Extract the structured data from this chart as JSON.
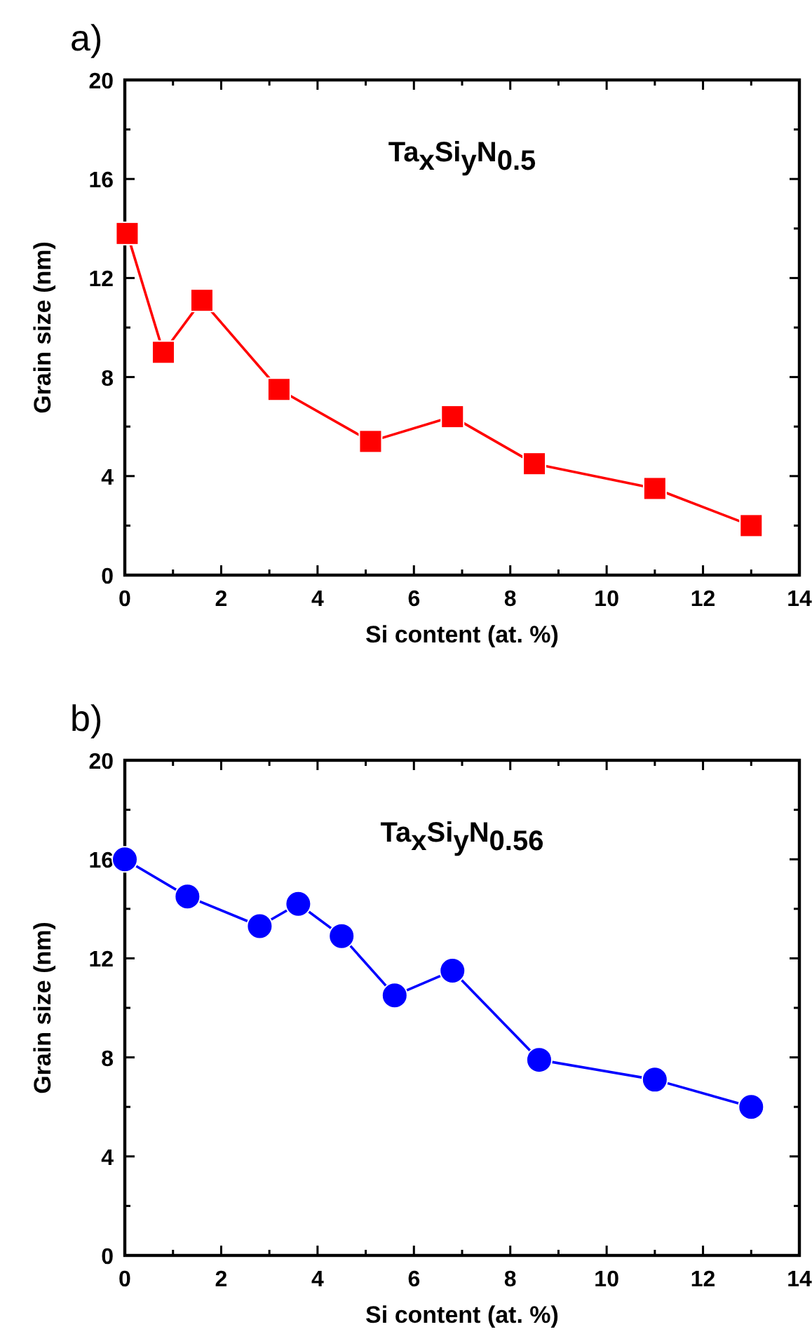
{
  "chart_data": [
    {
      "type": "line",
      "title": "a)",
      "xlabel": "Si content (at. %)",
      "ylabel": "Grain size (nm)",
      "annotations": [
        "Ta$_{x}$Si$_{y}$N$_{0.5}$"
      ],
      "x": [
        0.05,
        0.8,
        1.6,
        3.2,
        5.1,
        6.8,
        8.5,
        11,
        13
      ],
      "series": [
        {
          "color": "#ff0000",
          "values": [
            13.8,
            9.0,
            11.1,
            7.5,
            5.4,
            6.4,
            4.5,
            3.5,
            2.0
          ]
        }
      ],
      "marker": "square",
      "xlim": [
        0,
        14
      ],
      "ylim": [
        0,
        20
      ],
      "xticks": [
        0,
        {
          "value": 1,
          "label": null
        },
        2,
        {
          "value": 3,
          "label": null
        },
        4,
        {
          "value": 5,
          "label": null
        },
        6,
        {
          "value": 7,
          "label": null
        },
        8,
        {
          "value": 9,
          "label": null
        },
        10,
        {
          "value": 11,
          "label": null
        },
        12,
        {
          "value": 13,
          "label": null
        },
        14
      ],
      "yticks": [
        0,
        {
          "value": 2,
          "label": null
        },
        4,
        {
          "value": 6,
          "label": null
        },
        8,
        {
          "value": 10,
          "label": null
        },
        12,
        {
          "value": 14,
          "label": null
        },
        16,
        {
          "value": 18,
          "label": null
        },
        20
      ],
      "grid": false
    },
    {
      "type": "line",
      "title": "b)",
      "xlabel": "Si content (at. %)",
      "ylabel": "Grain size (nm)",
      "annotations": [
        "Ta$_{x}$Si$_{y}$N$_{0.56}$"
      ],
      "x": [
        0,
        1.3,
        2.8,
        3.6,
        4.5,
        5.6,
        6.8,
        8.6,
        11,
        13
      ],
      "series": [
        {
          "color": "#0000ff",
          "values": [
            16.0,
            14.5,
            13.3,
            14.2,
            12.9,
            10.5,
            11.5,
            7.9,
            7.1,
            6.0
          ]
        }
      ],
      "marker": "circle",
      "xlim": [
        0,
        14
      ],
      "ylim": [
        0,
        20
      ],
      "xticks": [
        0,
        {
          "value": 1,
          "label": null
        },
        2,
        {
          "value": 3,
          "label": null
        },
        4,
        {
          "value": 5,
          "label": null
        },
        6,
        {
          "value": 7,
          "label": null
        },
        8,
        {
          "value": 9,
          "label": null
        },
        10,
        {
          "value": 11,
          "label": null
        },
        12,
        {
          "value": 13,
          "label": null
        },
        14
      ],
      "yticks": [
        0,
        {
          "value": 2,
          "label": null
        },
        4,
        {
          "value": 6,
          "label": null
        },
        8,
        {
          "value": 10,
          "label": null
        },
        12,
        {
          "value": 14,
          "label": null
        },
        16,
        {
          "value": 18,
          "label": null
        },
        20
      ],
      "grid": false
    }
  ]
}
